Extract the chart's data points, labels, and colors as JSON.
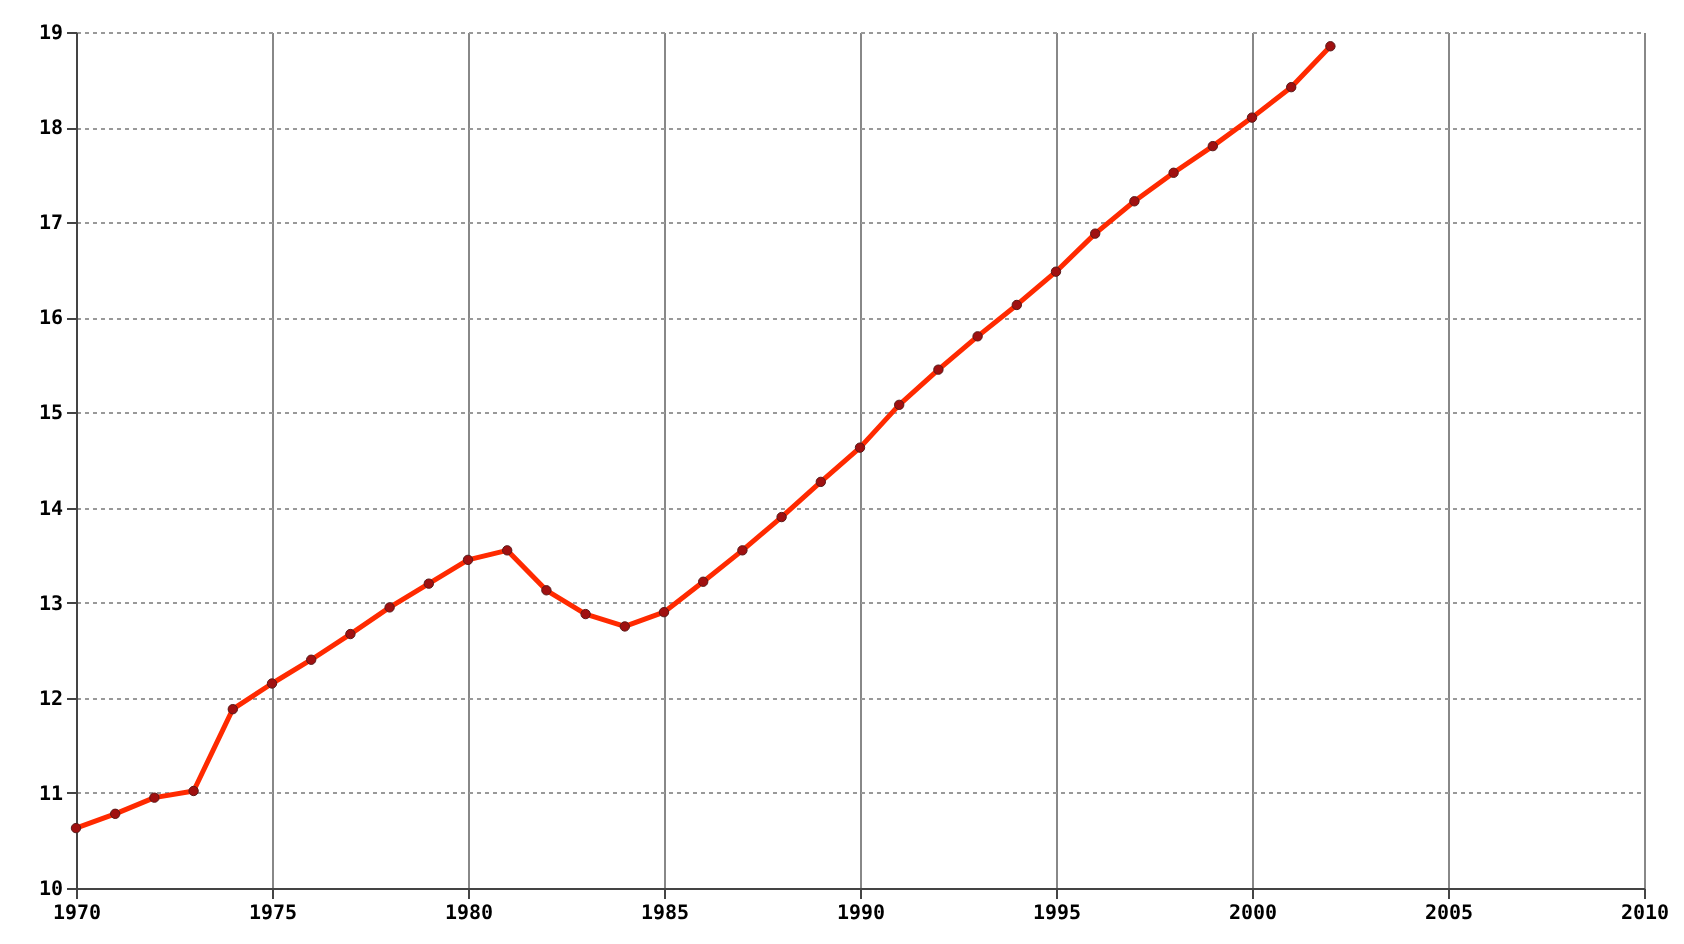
{
  "chart_data": {
    "type": "line",
    "x": [
      1970,
      1971,
      1972,
      1973,
      1974,
      1975,
      1976,
      1977,
      1978,
      1979,
      1980,
      1981,
      1982,
      1983,
      1984,
      1985,
      1986,
      1987,
      1988,
      1989,
      1990,
      1991,
      1992,
      1993,
      1994,
      1995,
      1996,
      1997,
      1998,
      1999,
      2000,
      2001,
      2002
    ],
    "series": [
      {
        "color": "#ff2a00",
        "values": [
          10.63,
          10.78,
          10.95,
          11.02,
          11.88,
          12.15,
          12.4,
          12.67,
          12.95,
          13.2,
          13.45,
          13.55,
          13.13,
          12.88,
          12.75,
          12.9,
          13.22,
          13.55,
          13.9,
          14.27,
          14.63,
          15.08,
          15.45,
          15.8,
          16.13,
          16.48,
          16.88,
          17.22,
          17.52,
          17.8,
          18.1,
          18.42,
          18.85
        ]
      }
    ],
    "xlim": [
      1970,
      2010
    ],
    "xticks": [
      1970,
      1975,
      1980,
      1985,
      1990,
      1995,
      2000,
      2005,
      2010
    ],
    "ylim": [
      10,
      19
    ],
    "yticks": [
      10,
      11,
      12,
      13,
      14,
      15,
      16,
      17,
      18,
      19
    ],
    "grid": true,
    "marker": "circle",
    "line_style": "solid"
  }
}
